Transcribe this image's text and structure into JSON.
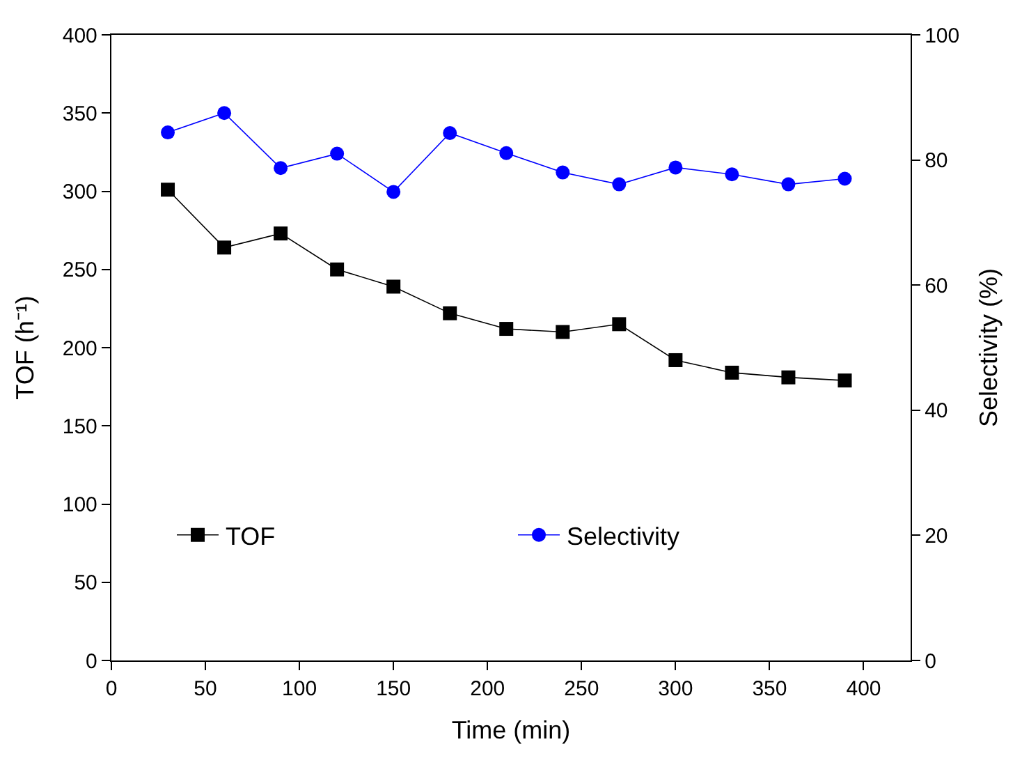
{
  "chart_data": {
    "type": "line",
    "xlabel": "Time (min)",
    "ylabel": "TOF (h⁻¹)",
    "y2label": "Selectivity (%)",
    "x": [
      30,
      60,
      90,
      120,
      150,
      180,
      210,
      240,
      270,
      300,
      330,
      360,
      390
    ],
    "series": [
      {
        "name": "TOF",
        "color": "#000000",
        "marker": "square",
        "values": [
          301,
          264,
          273,
          250,
          239,
          222,
          212,
          210,
          215,
          192,
          184,
          181,
          179
        ]
      },
      {
        "name": "Selectivity",
        "color": "#0000ff",
        "marker": "circle",
        "axis": "y2",
        "values": [
          84.4,
          87.5,
          78.7,
          81.0,
          74.9,
          84.3,
          81.1,
          78.0,
          76.1,
          78.8,
          77.7,
          76.1,
          77.0
        ]
      }
    ],
    "xlim": [
      0,
      425
    ],
    "xticks": [
      0,
      50,
      100,
      150,
      200,
      250,
      300,
      350,
      400
    ],
    "ylim": [
      0,
      400
    ],
    "yticks": [
      0,
      50,
      100,
      150,
      200,
      250,
      300,
      350,
      400
    ],
    "y2lim": [
      0,
      100
    ],
    "y2ticks": [
      0,
      20,
      40,
      60,
      80,
      100
    ],
    "legend": "bottom"
  }
}
